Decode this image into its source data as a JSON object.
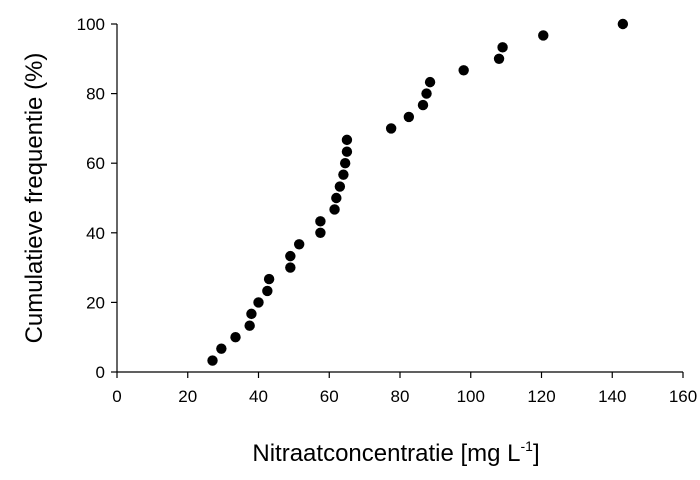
{
  "chart_data": {
    "type": "scatter",
    "xlabel": "Nitraatconcentratie [mg L",
    "xlabel_sup": "-1",
    "xlabel_suffix": "]",
    "ylabel": "Cumulatieve frequentie (%)",
    "xlim": [
      0,
      160
    ],
    "ylim": [
      0,
      100
    ],
    "xticks": [
      0,
      20,
      40,
      60,
      80,
      100,
      120,
      140,
      160
    ],
    "yticks": [
      0,
      20,
      40,
      60,
      80,
      100
    ],
    "grid": false,
    "marker_color": "#000000",
    "points": [
      {
        "x": 27,
        "y": 3.3
      },
      {
        "x": 29.5,
        "y": 6.7
      },
      {
        "x": 33.5,
        "y": 10
      },
      {
        "x": 37.5,
        "y": 13.3
      },
      {
        "x": 38,
        "y": 16.7
      },
      {
        "x": 40,
        "y": 20
      },
      {
        "x": 42.5,
        "y": 23.3
      },
      {
        "x": 43,
        "y": 26.7
      },
      {
        "x": 49,
        "y": 30
      },
      {
        "x": 49,
        "y": 33.3
      },
      {
        "x": 51.5,
        "y": 36.7
      },
      {
        "x": 57.5,
        "y": 40
      },
      {
        "x": 57.5,
        "y": 43.3
      },
      {
        "x": 61.5,
        "y": 46.7
      },
      {
        "x": 62,
        "y": 50
      },
      {
        "x": 63,
        "y": 53.3
      },
      {
        "x": 64,
        "y": 56.7
      },
      {
        "x": 64.5,
        "y": 60
      },
      {
        "x": 65,
        "y": 63.3
      },
      {
        "x": 65,
        "y": 66.7
      },
      {
        "x": 77.5,
        "y": 70
      },
      {
        "x": 82.5,
        "y": 73.3
      },
      {
        "x": 86.5,
        "y": 76.7
      },
      {
        "x": 87.5,
        "y": 80
      },
      {
        "x": 88.5,
        "y": 83.3
      },
      {
        "x": 98,
        "y": 86.7
      },
      {
        "x": 108,
        "y": 90
      },
      {
        "x": 109,
        "y": 93.3
      },
      {
        "x": 120.5,
        "y": 96.7
      },
      {
        "x": 143,
        "y": 100
      }
    ]
  }
}
